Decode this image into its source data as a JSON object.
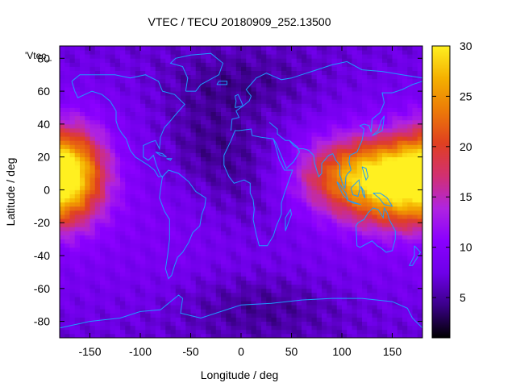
{
  "chart_data": {
    "type": "heatmap",
    "title": "VTEC / TECU 20180909_252.13500",
    "xlabel": "Longitude / deg",
    "ylabel": "Latitude / deg",
    "key_label": "'Vtec_",
    "xlim": [
      -180,
      180
    ],
    "ylim": [
      -90,
      87.5
    ],
    "colorbar_range": [
      1,
      30
    ],
    "x_ticks": [
      {
        "value": -150,
        "label": "-150"
      },
      {
        "value": -100,
        "label": "-100"
      },
      {
        "value": -50,
        "label": "-50"
      },
      {
        "value": 0,
        "label": "0"
      },
      {
        "value": 50,
        "label": "50"
      },
      {
        "value": 100,
        "label": "100"
      },
      {
        "value": 150,
        "label": "150"
      }
    ],
    "y_ticks": [
      {
        "value": -80,
        "label": "-80"
      },
      {
        "value": -60,
        "label": "-60"
      },
      {
        "value": -40,
        "label": "-40"
      },
      {
        "value": -20,
        "label": "-20"
      },
      {
        "value": 0,
        "label": "0"
      },
      {
        "value": 20,
        "label": "20"
      },
      {
        "value": 40,
        "label": "40"
      },
      {
        "value": 60,
        "label": "60"
      },
      {
        "value": 80,
        "label": "80"
      }
    ],
    "colorbar_ticks": [
      {
        "value": 5,
        "label": "5"
      },
      {
        "value": 10,
        "label": "10"
      },
      {
        "value": 15,
        "label": "15"
      },
      {
        "value": 20,
        "label": "20"
      },
      {
        "value": 25,
        "label": "25"
      },
      {
        "value": 30,
        "label": "30"
      }
    ],
    "colormap": [
      "#000000",
      "#3a0088",
      "#6e00e8",
      "#8a00ff",
      "#b024e0",
      "#d23070",
      "#e04020",
      "#ec7a08",
      "#f4b000",
      "#fff020"
    ],
    "grid": false,
    "tec_field": {
      "background": 7,
      "blobs": [
        {
          "lon": 115,
          "lat": 8,
          "lon_width": 45,
          "lat_width": 16,
          "amplitude": 16
        },
        {
          "lon": 150,
          "lat": 8,
          "lon_width": 30,
          "lat_width": 16,
          "amplitude": 8
        },
        {
          "lon": -170,
          "lat": 10,
          "lon_width": 25,
          "lat_width": 20,
          "amplitude": 17
        },
        {
          "lon": 20,
          "lat": 5,
          "lon_width": 50,
          "lat_width": 25,
          "amplitude": -4
        },
        {
          "lon": -40,
          "lat": 30,
          "lon_width": 40,
          "lat_width": 20,
          "amplitude": -3
        },
        {
          "lon": 0,
          "lat": 65,
          "lon_width": 60,
          "lat_width": 15,
          "amplitude": -3
        },
        {
          "lon": 20,
          "lat": -70,
          "lon_width": 60,
          "lat_width": 15,
          "amplitude": -3
        },
        {
          "lon": 150,
          "lat": -15,
          "lon_width": 30,
          "lat_width": 10,
          "amplitude": 4
        }
      ]
    },
    "coastline_color": "#1e9bff"
  }
}
